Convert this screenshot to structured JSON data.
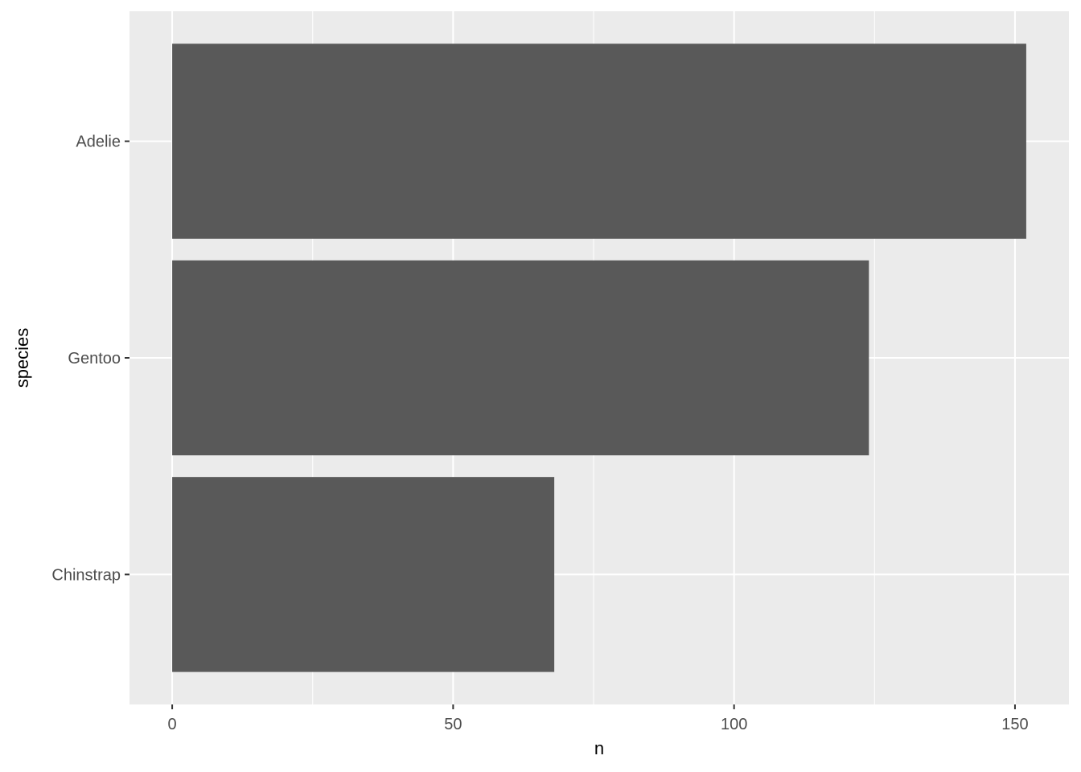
{
  "chart_data": {
    "type": "bar",
    "orientation": "horizontal",
    "categories": [
      "Adelie",
      "Gentoo",
      "Chinstrap"
    ],
    "values": [
      152,
      124,
      68
    ],
    "title": "",
    "xlabel": "n",
    "ylabel": "species",
    "xlim": [
      -7.6,
      159.6
    ],
    "xticks": [
      0,
      50,
      100,
      150
    ],
    "xtick_labels": [
      "0",
      "50",
      "100",
      "150"
    ],
    "grid": true,
    "colors": {
      "bar": "#595959",
      "panel": "#EBEBEB",
      "grid": "#FFFFFF",
      "text": "#4D4D4D"
    }
  }
}
